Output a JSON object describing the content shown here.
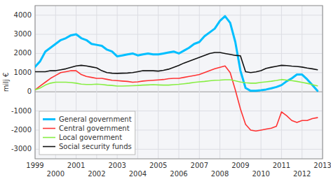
{
  "chart_data": {
    "type": "line",
    "y_label": "milj €",
    "x": [
      1999.0,
      1999.25,
      1999.5,
      1999.75,
      2000.0,
      2000.25,
      2000.5,
      2000.75,
      2001.0,
      2001.25,
      2001.5,
      2001.75,
      2002.0,
      2002.25,
      2002.5,
      2002.75,
      2003.0,
      2003.25,
      2003.5,
      2003.75,
      2004.0,
      2004.25,
      2004.5,
      2004.75,
      2005.0,
      2005.25,
      2005.5,
      2005.75,
      2006.0,
      2006.25,
      2006.5,
      2006.75,
      2007.0,
      2007.25,
      2007.5,
      2007.75,
      2008.0,
      2008.25,
      2008.5,
      2008.75,
      2009.0,
      2009.25,
      2009.5,
      2009.75,
      2010.0,
      2010.25,
      2010.5,
      2010.75,
      2011.0,
      2011.25,
      2011.5,
      2011.75,
      2012.0,
      2012.25,
      2012.5,
      2012.75
    ],
    "series": [
      {
        "name": "General government",
        "color": "#00bfff",
        "values": [
          1300,
          1600,
          2100,
          2300,
          2500,
          2700,
          2800,
          2950,
          3000,
          2800,
          2700,
          2500,
          2450,
          2400,
          2200,
          2100,
          1850,
          1900,
          1950,
          2000,
          1900,
          1950,
          2000,
          1950,
          1950,
          2000,
          2050,
          2100,
          2000,
          2150,
          2300,
          2500,
          2600,
          2900,
          3100,
          3300,
          3700,
          3950,
          3600,
          2600,
          1100,
          200,
          50,
          50,
          80,
          120,
          180,
          250,
          350,
          550,
          700,
          900,
          900,
          650,
          350,
          50
        ]
      },
      {
        "name": "Central government",
        "color": "#ff3333",
        "values": [
          100,
          300,
          500,
          700,
          850,
          1000,
          1050,
          1100,
          1100,
          900,
          800,
          750,
          700,
          700,
          650,
          600,
          580,
          560,
          540,
          500,
          520,
          560,
          580,
          600,
          620,
          640,
          680,
          700,
          700,
          750,
          800,
          850,
          900,
          1000,
          1100,
          1200,
          1280,
          1350,
          1000,
          100,
          -900,
          -1700,
          -2000,
          -2050,
          -2000,
          -1950,
          -1900,
          -1800,
          -1050,
          -1250,
          -1500,
          -1600,
          -1500,
          -1500,
          -1400,
          -1350
        ]
      },
      {
        "name": "Local government",
        "color": "#88ee44",
        "values": [
          100,
          200,
          350,
          450,
          500,
          500,
          500,
          480,
          450,
          400,
          380,
          380,
          400,
          380,
          350,
          330,
          300,
          300,
          310,
          320,
          330,
          350,
          360,
          370,
          360,
          350,
          350,
          370,
          390,
          420,
          450,
          490,
          520,
          540,
          570,
          600,
          610,
          630,
          630,
          570,
          510,
          470,
          450,
          450,
          490,
          520,
          550,
          590,
          640,
          610,
          580,
          540,
          490,
          440,
          370,
          310
        ]
      },
      {
        "name": "Social security funds",
        "color": "#111111",
        "values": [
          1050,
          1050,
          1050,
          1100,
          1100,
          1150,
          1200,
          1280,
          1350,
          1380,
          1350,
          1300,
          1250,
          1100,
          1000,
          970,
          960,
          970,
          980,
          1000,
          1050,
          1100,
          1100,
          1100,
          1080,
          1120,
          1180,
          1280,
          1380,
          1500,
          1600,
          1700,
          1800,
          1900,
          2000,
          2050,
          2050,
          2000,
          1950,
          1900,
          1880,
          1050,
          1000,
          1040,
          1100,
          1220,
          1280,
          1330,
          1380,
          1370,
          1340,
          1320,
          1290,
          1240,
          1200,
          1150
        ]
      }
    ],
    "xlim": [
      1999.0,
      2013.0
    ],
    "ylim": [
      -3500,
      4500
    ],
    "xticks": [
      1999,
      2000,
      2001,
      2002,
      2003,
      2004,
      2005,
      2006,
      2007,
      2008,
      2009,
      2010,
      2011,
      2012,
      2013
    ],
    "yticks": [
      -3000,
      -2000,
      -1000,
      0,
      1000,
      2000,
      3000,
      4000
    ],
    "grid": true,
    "legend": "lower left"
  }
}
